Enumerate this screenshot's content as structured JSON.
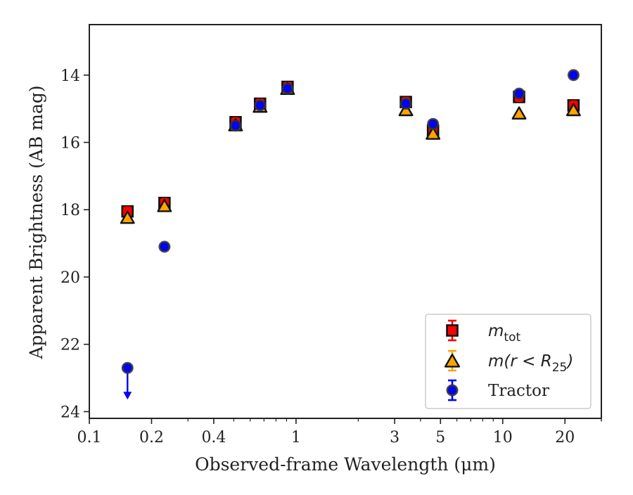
{
  "chart_data": {
    "type": "scatter",
    "title": "",
    "xlabel": "Observed-frame Wavelength (μm)",
    "ylabel": "Apparent Brightness (AB mag)",
    "xscale": "log",
    "xlim": [
      0.1,
      30
    ],
    "ylim": [
      24.2,
      12.5
    ],
    "y_inverted": true,
    "grid": false,
    "legend_position": "lower-right",
    "x_ticks": [
      {
        "value": 0.1,
        "label": "0.1"
      },
      {
        "value": 0.2,
        "label": "0.2"
      },
      {
        "value": 0.4,
        "label": "0.4"
      },
      {
        "value": 1,
        "label": "1"
      },
      {
        "value": 3,
        "label": "3"
      },
      {
        "value": 5,
        "label": "5"
      },
      {
        "value": 10,
        "label": "10"
      },
      {
        "value": 20,
        "label": "20"
      }
    ],
    "y_ticks": [
      {
        "value": 14,
        "label": "14"
      },
      {
        "value": 16,
        "label": "16"
      },
      {
        "value": 18,
        "label": "18"
      },
      {
        "value": 20,
        "label": "20"
      },
      {
        "value": 22,
        "label": "22"
      },
      {
        "value": 24,
        "label": "24"
      }
    ],
    "series": [
      {
        "name": "m_tot",
        "legend_label": "m",
        "legend_sub": "tot",
        "marker": "square",
        "color": "#ff0000",
        "x": [
          0.153,
          0.231,
          0.51,
          0.67,
          0.91,
          3.4,
          4.6,
          12.0,
          22.0
        ],
        "y": [
          18.05,
          17.8,
          15.4,
          14.85,
          14.35,
          14.8,
          15.65,
          14.65,
          14.9
        ]
      },
      {
        "name": "m(r<R25)",
        "legend_label": "m(r < R",
        "legend_sub": "25",
        "legend_tail": ")",
        "marker": "triangle",
        "color": "#ffa500",
        "x": [
          0.153,
          0.231,
          0.51,
          0.67,
          0.91,
          3.4,
          4.6,
          12.0,
          22.0
        ],
        "y": [
          18.25,
          17.9,
          15.5,
          14.95,
          14.42,
          15.05,
          15.75,
          15.15,
          15.05
        ]
      },
      {
        "name": "Tractor",
        "legend_label": "Tractor",
        "marker": "circle",
        "color": "#0000ff",
        "x": [
          0.153,
          0.231,
          0.51,
          0.67,
          0.91,
          3.4,
          4.6,
          12.0,
          22.0
        ],
        "y": [
          22.7,
          19.1,
          15.5,
          14.9,
          14.4,
          14.85,
          15.45,
          14.55,
          14.0
        ],
        "upper_limit": [
          true,
          false,
          false,
          false,
          false,
          false,
          false,
          false,
          false
        ]
      }
    ]
  }
}
